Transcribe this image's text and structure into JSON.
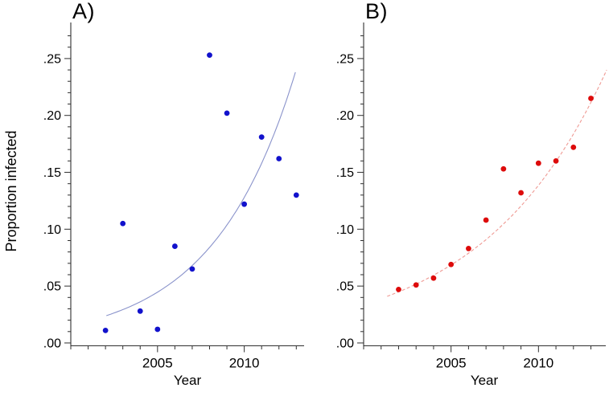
{
  "figure": {
    "background": "#ffffff",
    "axis_color": "#303030",
    "text_color": "#000000",
    "ylabel": "Proportion infected",
    "panels": [
      {
        "label": "A)",
        "xlabel": "Year",
        "point_color": "#1212cc",
        "curve_color": "#8a93cb",
        "curve_dash": "solid"
      },
      {
        "label": "B)",
        "xlabel": "Year",
        "point_color": "#dd0b0b",
        "curve_color": "#ef9a94",
        "curve_dash": "dashed"
      }
    ]
  },
  "chart_data": [
    {
      "type": "scatter",
      "panel": "A",
      "title": "A)",
      "xlabel": "Year",
      "ylabel": "Proportion infected",
      "x": [
        2002,
        2003,
        2004,
        2005,
        2006,
        2007,
        2008,
        2009,
        2010,
        2011,
        2012,
        2013
      ],
      "y": [
        0.011,
        0.105,
        0.028,
        0.012,
        0.085,
        0.065,
        0.253,
        0.202,
        0.122,
        0.181,
        0.162,
        0.13
      ],
      "trend": {
        "type": "exponential",
        "x_start": 2002.05,
        "y_start": 0.024,
        "x_end": 2012.95,
        "y_end": 0.238,
        "line_style": "solid"
      },
      "xlim": [
        2000.0,
        2013.45
      ],
      "ylim": [
        -0.0025,
        0.2817
      ],
      "x_major_ticks": [
        2005,
        2010
      ],
      "x_major_tick_labels": [
        "2005",
        "2010"
      ],
      "x_minor_ticks": [
        2000,
        2001,
        2002,
        2003,
        2004,
        2006,
        2007,
        2008,
        2009,
        2011,
        2012,
        2013
      ],
      "y_major_ticks": [
        0,
        0.05,
        0.1,
        0.15,
        0.2,
        0.25
      ],
      "y_major_tick_labels": [
        ".00",
        ".05",
        ".10",
        ".15",
        ".20",
        ".25"
      ],
      "y_minor_ticks": [
        0.01,
        0.02,
        0.03,
        0.04,
        0.06,
        0.07,
        0.08,
        0.09,
        0.11,
        0.12,
        0.13,
        0.14,
        0.16,
        0.17,
        0.18,
        0.19,
        0.21,
        0.22,
        0.23,
        0.24,
        0.26,
        0.27
      ],
      "grid": false,
      "legend": false
    },
    {
      "type": "scatter",
      "panel": "B",
      "title": "B)",
      "xlabel": "Year",
      "ylabel": "Proportion infected",
      "x": [
        2002,
        2003,
        2004,
        2005,
        2006,
        2007,
        2008,
        2009,
        2010,
        2011,
        2012,
        2013
      ],
      "y": [
        0.047,
        0.051,
        0.057,
        0.069,
        0.083,
        0.108,
        0.153,
        0.132,
        0.158,
        0.16,
        0.172,
        0.215
      ],
      "trend": {
        "type": "exponential",
        "x_start": 2001.35,
        "y_start": 0.041,
        "x_end": 2013.9,
        "y_end": 0.24,
        "line_style": "dashed"
      },
      "xlim": [
        2000.0,
        2013.85
      ],
      "ylim": [
        -0.0025,
        0.2817
      ],
      "x_major_ticks": [
        2005,
        2010
      ],
      "x_major_tick_labels": [
        "2005",
        "2010"
      ],
      "x_minor_ticks": [
        2000,
        2001,
        2002,
        2003,
        2004,
        2006,
        2007,
        2008,
        2009,
        2011,
        2012,
        2013
      ],
      "y_major_ticks": [
        0,
        0.05,
        0.1,
        0.15,
        0.2,
        0.25
      ],
      "y_major_tick_labels": [
        ".00",
        ".05",
        ".10",
        ".15",
        ".20",
        ".25"
      ],
      "y_minor_ticks": [
        0.01,
        0.02,
        0.03,
        0.04,
        0.06,
        0.07,
        0.08,
        0.09,
        0.11,
        0.12,
        0.13,
        0.14,
        0.16,
        0.17,
        0.18,
        0.19,
        0.21,
        0.22,
        0.23,
        0.24,
        0.26,
        0.27
      ],
      "grid": false,
      "legend": false
    }
  ]
}
